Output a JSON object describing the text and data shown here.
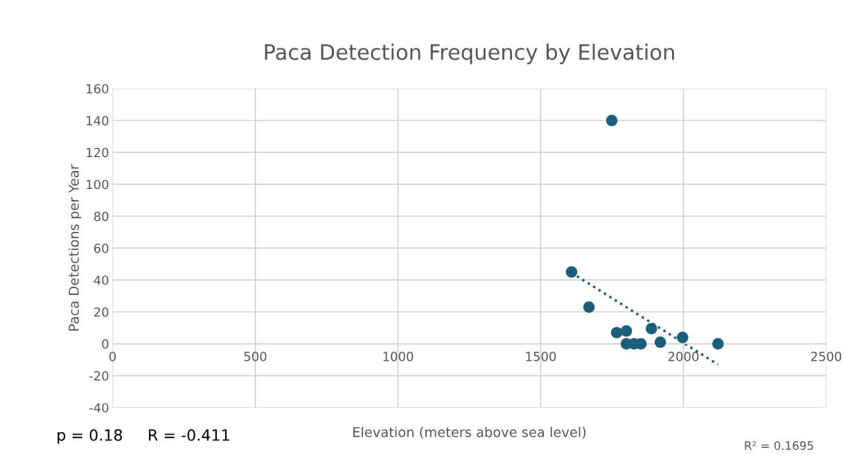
{
  "chart_data": {
    "type": "scatter",
    "title": "Paca Detection Frequency by Elevation",
    "xlabel": "Elevation (meters above sea level)",
    "ylabel": "Paca Detections per Year",
    "series": [
      {
        "marker": "circle",
        "color": "#1b5e7b",
        "x": [
          1608,
          1749,
          1669,
          1766,
          1800,
          1800,
          1827,
          1851,
          1888,
          1919,
          1997,
          2121
        ],
        "values": [
          45,
          140,
          23,
          7,
          8,
          0,
          0,
          0,
          9.5,
          1,
          4,
          0
        ]
      },
      {
        "type": "line",
        "color": "#1b5e7b",
        "line_style": "dotted",
        "x": [
          1608,
          2121
        ],
        "values": [
          44.5,
          -13
        ]
      }
    ],
    "xlim": [
      0,
      2500
    ],
    "ylim": [
      -40,
      160
    ],
    "xticks": [
      0,
      500,
      1000,
      1500,
      2000,
      2500
    ],
    "yticks": [
      -40,
      -20,
      0,
      20,
      40,
      60,
      80,
      100,
      120,
      140,
      160
    ],
    "grid": true,
    "annotations": [
      "p = 0.18     R = -0.411",
      "R² = 0.1695"
    ]
  }
}
